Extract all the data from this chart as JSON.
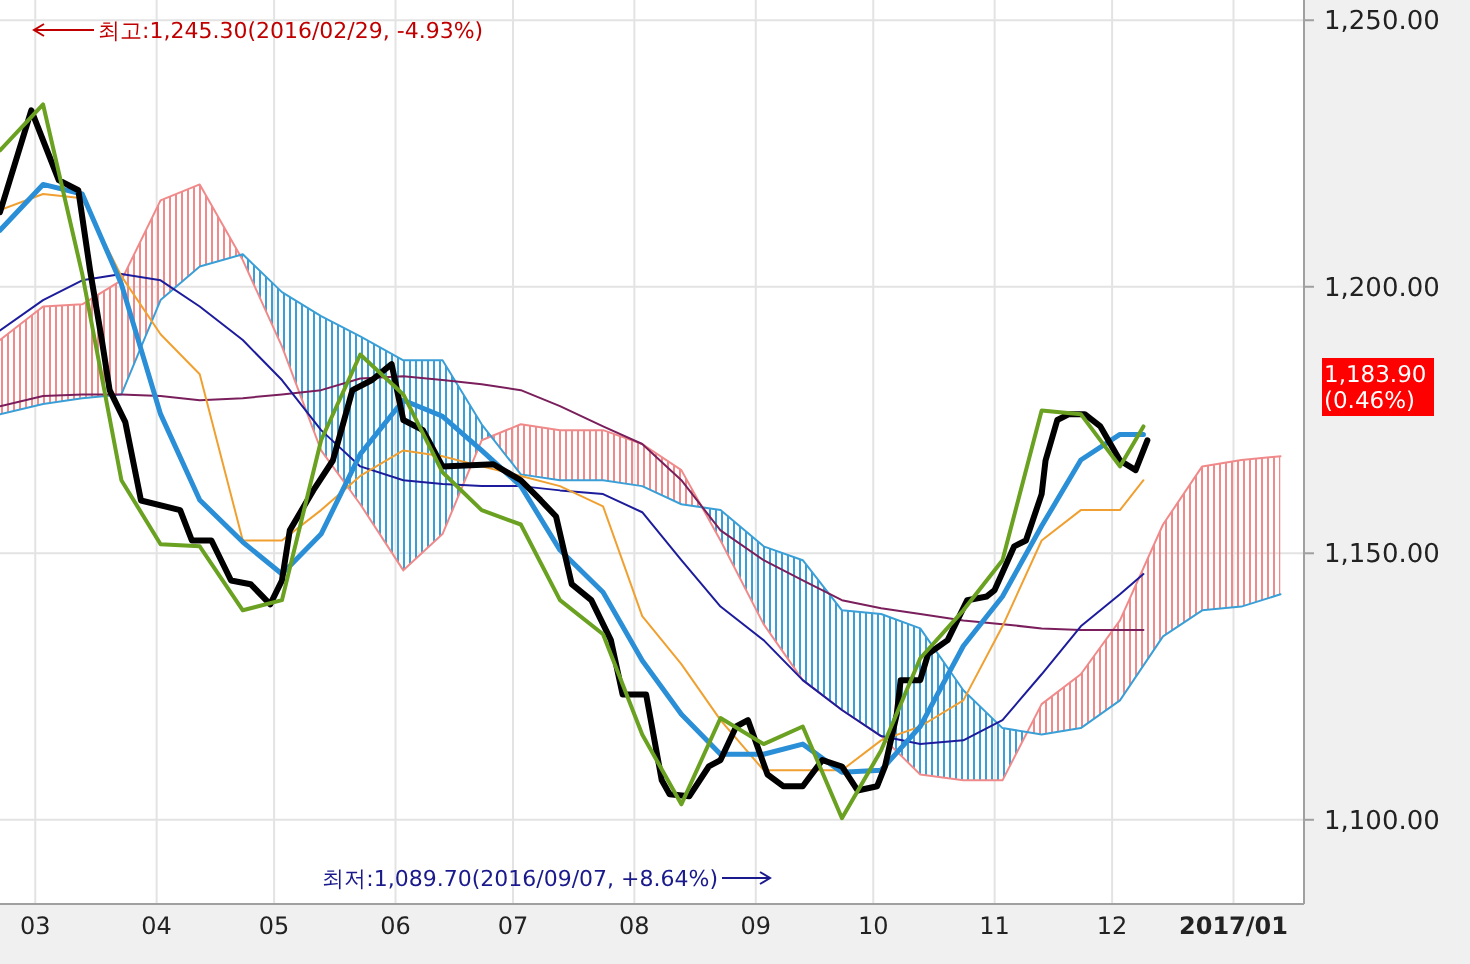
{
  "chart_data": {
    "type": "line",
    "xlim": [
      "2016-02-21",
      "2017-01-19"
    ],
    "ylim": [
      1084.2,
      1253.8
    ],
    "xticks": [
      {
        "value": "2016-03-01",
        "label": "03"
      },
      {
        "value": "2016-04-01",
        "label": "04"
      },
      {
        "value": "2016-05-01",
        "label": "05"
      },
      {
        "value": "2016-06-01",
        "label": "06"
      },
      {
        "value": "2016-07-01",
        "label": "07"
      },
      {
        "value": "2016-08-01",
        "label": "08"
      },
      {
        "value": "2016-09-01",
        "label": "09"
      },
      {
        "value": "2016-10-01",
        "label": "10"
      },
      {
        "value": "2016-11-01",
        "label": "11"
      },
      {
        "value": "2016-12-01",
        "label": "12"
      },
      {
        "value": "2017-01-01",
        "label": "**2017/01**"
      }
    ],
    "yticks": [
      {
        "value": 1100,
        "label": "1,100.00"
      },
      {
        "value": 1150,
        "label": "1,150.00"
      },
      {
        "value": 1200,
        "label": "1,200.00"
      },
      {
        "value": 1250,
        "label": "1,250.00"
      }
    ],
    "grid": true,
    "series": [
      {
        "type": "line",
        "color": "#f08a8a",
        "x": [
          "2016-02-21",
          "2016-03-03",
          "2016-03-13",
          "2016-03-23",
          "2016-04-02",
          "2016-04-12",
          "2016-04-23",
          "2016-05-03",
          "2016-05-13",
          "2016-05-23",
          "2016-06-03",
          "2016-06-13",
          "2016-06-23",
          "2016-07-03",
          "2016-07-13",
          "2016-07-24",
          "2016-08-03",
          "2016-08-13",
          "2016-08-23",
          "2016-09-03",
          "2016-09-13",
          "2016-09-23",
          "2016-10-03",
          "2016-10-13",
          "2016-10-24",
          "2016-11-03",
          "2016-11-13",
          "2016-11-23",
          "2016-12-03",
          "2016-12-14",
          "2016-12-24",
          "2017-01-03",
          "2017-01-13"
        ],
        "values": [
          1190.0,
          1196.3,
          1196.7,
          1201.2,
          1216.2,
          1219.2,
          1205.0,
          1188.8,
          1169.3,
          1159.2,
          1146.8,
          1153.6,
          1171.2,
          1174.2,
          1173.1,
          1173.1,
          1170.5,
          1165.6,
          1152.4,
          1136.7,
          1126.2,
          1120.6,
          1115.7,
          1108.5,
          1107.4,
          1107.4,
          1121.7,
          1127.3,
          1137.4,
          1155.4,
          1166.3,
          1167.5,
          1168.2
        ],
        "upper": [
          1190.0,
          1196.3,
          1196.7,
          1201.2,
          1216.2,
          1219.2,
          1205.0,
          1188.8,
          1169.3,
          1159.2,
          1146.8,
          1153.6,
          1171.2,
          1174.2,
          1173.1,
          1173.1,
          1170.5,
          1165.6,
          1152.4,
          1136.7,
          1126.2,
          1120.6,
          1115.7,
          1108.5,
          1107.4,
          1107.4,
          1121.7,
          1127.3,
          1137.4,
          1155.4,
          1166.3,
          1167.5,
          1168.2
        ],
        "lower": [
          1176.1,
          1178.0,
          1179.1,
          1179.8,
          1197.5,
          1203.8,
          1206.1,
          1199.0,
          1194.5,
          1190.7,
          1186.2,
          1186.2,
          1174.2,
          1164.8,
          1163.7,
          1163.7,
          1162.6,
          1159.2,
          1158.1,
          1151.3,
          1148.7,
          1139.3,
          1138.6,
          1135.9,
          1124.3,
          1117.2,
          1116.0,
          1117.2,
          1122.4,
          1134.4,
          1139.3,
          1140.0,
          1142.3
        ]
      },
      {
        "type": "line",
        "color": "#3a9fd6",
        "x": [
          "2016-02-21",
          "2016-03-03",
          "2016-03-13",
          "2016-03-23",
          "2016-04-02",
          "2016-04-12",
          "2016-04-23",
          "2016-05-03",
          "2016-05-13",
          "2016-05-23",
          "2016-06-03",
          "2016-06-13",
          "2016-06-23",
          "2016-07-03",
          "2016-07-13",
          "2016-07-24",
          "2016-08-03",
          "2016-08-13",
          "2016-08-23",
          "2016-09-03",
          "2016-09-13",
          "2016-09-23",
          "2016-10-03",
          "2016-10-13",
          "2016-10-24",
          "2016-11-03",
          "2016-11-13",
          "2016-11-23",
          "2016-12-03",
          "2016-12-14",
          "2016-12-24",
          "2017-01-03",
          "2017-01-13"
        ],
        "values": [
          1176.1,
          1178.0,
          1179.1,
          1179.8,
          1197.5,
          1203.8,
          1206.1,
          1199.0,
          1194.5,
          1190.7,
          1186.2,
          1186.2,
          1174.2,
          1164.8,
          1163.7,
          1163.7,
          1162.6,
          1159.2,
          1158.1,
          1151.3,
          1148.7,
          1139.3,
          1138.6,
          1135.9,
          1124.3,
          1117.2,
          1116.0,
          1117.2,
          1122.4,
          1134.4,
          1139.3,
          1140.0,
          1142.3
        ]
      },
      {
        "color": "#7a1f5c",
        "x": [
          "2016-02-21",
          "2016-03-03",
          "2016-03-13",
          "2016-03-23",
          "2016-04-02",
          "2016-04-12",
          "2016-04-23",
          "2016-05-03",
          "2016-05-13",
          "2016-05-23",
          "2016-06-03",
          "2016-06-13",
          "2016-06-23",
          "2016-07-03",
          "2016-07-13",
          "2016-07-24",
          "2016-08-03",
          "2016-08-13",
          "2016-08-23",
          "2016-09-03",
          "2016-09-13",
          "2016-09-23",
          "2016-10-03",
          "2016-10-13",
          "2016-10-24",
          "2016-11-03",
          "2016-11-13",
          "2016-11-23",
          "2016-12-03",
          "2016-12-09"
        ],
        "values": [
          1177.6,
          1179.5,
          1179.8,
          1179.8,
          1179.5,
          1178.7,
          1179.1,
          1179.8,
          1180.6,
          1182.8,
          1183.2,
          1182.5,
          1181.7,
          1180.6,
          1177.6,
          1173.8,
          1170.5,
          1163.7,
          1154.3,
          1148.7,
          1144.9,
          1141.2,
          1139.7,
          1138.6,
          1137.4,
          1136.7,
          1135.9,
          1135.6,
          1135.6,
          1135.6
        ]
      },
      {
        "color": "#1c1c9c",
        "x": [
          "2016-02-21",
          "2016-03-03",
          "2016-03-13",
          "2016-03-23",
          "2016-04-02",
          "2016-04-12",
          "2016-04-23",
          "2016-05-03",
          "2016-05-13",
          "2016-05-23",
          "2016-06-03",
          "2016-06-13",
          "2016-06-23",
          "2016-07-03",
          "2016-07-13",
          "2016-07-24",
          "2016-08-03",
          "2016-08-13",
          "2016-08-23",
          "2016-09-03",
          "2016-09-13",
          "2016-09-23",
          "2016-10-03",
          "2016-10-13",
          "2016-10-24",
          "2016-11-03",
          "2016-11-13",
          "2016-11-23",
          "2016-12-03",
          "2016-12-09"
        ],
        "values": [
          1191.8,
          1197.5,
          1201.2,
          1202.4,
          1201.2,
          1196.3,
          1190.0,
          1182.5,
          1173.1,
          1166.3,
          1163.7,
          1163.0,
          1162.6,
          1162.6,
          1161.8,
          1161.1,
          1157.7,
          1148.7,
          1140.0,
          1133.7,
          1126.2,
          1120.6,
          1115.7,
          1114.2,
          1114.9,
          1118.7,
          1127.3,
          1136.3,
          1142.3,
          1146.1
        ]
      },
      {
        "color": "#f0a030",
        "x": [
          "2016-02-21",
          "2016-03-03",
          "2016-03-13",
          "2016-03-23",
          "2016-04-02",
          "2016-04-12",
          "2016-04-23",
          "2016-05-03",
          "2016-05-13",
          "2016-05-23",
          "2016-06-03",
          "2016-06-13",
          "2016-06-23",
          "2016-07-03",
          "2016-07-13",
          "2016-07-24",
          "2016-08-03",
          "2016-08-13",
          "2016-08-23",
          "2016-09-03",
          "2016-09-13",
          "2016-09-23",
          "2016-10-03",
          "2016-10-13",
          "2016-10-24",
          "2016-11-03",
          "2016-11-13",
          "2016-11-23",
          "2016-12-03",
          "2016-12-09"
        ],
        "values": [
          1214.4,
          1217.4,
          1216.6,
          1202.0,
          1191.1,
          1183.6,
          1152.4,
          1152.4,
          1158.1,
          1164.5,
          1169.3,
          1168.2,
          1166.3,
          1164.5,
          1162.6,
          1158.8,
          1138.2,
          1129.2,
          1118.7,
          1109.3,
          1109.3,
          1109.3,
          1114.9,
          1117.5,
          1122.4,
          1136.3,
          1152.4,
          1158.1,
          1158.1,
          1163.7
        ]
      },
      {
        "color": "#2a8fd6",
        "x": [
          "2016-02-21",
          "2016-03-03",
          "2016-03-13",
          "2016-03-23",
          "2016-04-02",
          "2016-04-12",
          "2016-04-23",
          "2016-05-03",
          "2016-05-13",
          "2016-05-23",
          "2016-06-03",
          "2016-06-13",
          "2016-06-23",
          "2016-07-03",
          "2016-07-13",
          "2016-07-24",
          "2016-08-03",
          "2016-08-13",
          "2016-08-23",
          "2016-09-03",
          "2016-09-13",
          "2016-09-23",
          "2016-10-03",
          "2016-10-13",
          "2016-10-24",
          "2016-11-03",
          "2016-11-13",
          "2016-11-23",
          "2016-12-03",
          "2016-12-09"
        ],
        "values": [
          1210.6,
          1219.2,
          1217.4,
          1200.5,
          1176.1,
          1160.0,
          1152.1,
          1146.1,
          1153.6,
          1168.6,
          1178.7,
          1175.7,
          1169.3,
          1162.6,
          1150.6,
          1142.7,
          1129.9,
          1119.8,
          1112.3,
          1112.3,
          1114.2,
          1108.9,
          1109.3,
          1117.5,
          1132.6,
          1141.9,
          1155.1,
          1167.5,
          1172.3,
          1172.3
        ]
      },
      {
        "color": "#000000",
        "x": [
          "2016-02-21",
          "2016-02-29",
          "2016-03-07",
          "2016-03-12",
          "2016-03-15",
          "2016-03-18",
          "2016-03-20",
          "2016-03-24",
          "2016-03-28",
          "2016-04-07",
          "2016-04-10",
          "2016-04-15",
          "2016-04-20",
          "2016-04-25",
          "2016-04-30",
          "2016-05-03",
          "2016-05-05",
          "2016-05-11",
          "2016-05-16",
          "2016-05-21",
          "2016-05-26",
          "2016-05-31",
          "2016-06-03",
          "2016-06-08",
          "2016-06-13",
          "2016-06-26",
          "2016-07-03",
          "2016-07-08",
          "2016-07-12",
          "2016-07-16",
          "2016-07-21",
          "2016-07-26",
          "2016-07-29",
          "2016-08-04",
          "2016-08-08",
          "2016-08-10",
          "2016-08-15",
          "2016-08-20",
          "2016-08-23",
          "2016-08-27",
          "2016-08-30",
          "2016-09-04",
          "2016-09-08",
          "2016-09-13",
          "2016-09-18",
          "2016-09-23",
          "2016-09-27",
          "2016-10-02",
          "2016-10-04",
          "2016-10-07",
          "2016-10-08",
          "2016-10-13",
          "2016-10-15",
          "2016-10-20",
          "2016-10-25",
          "2016-10-30",
          "2016-11-01",
          "2016-11-06",
          "2016-11-09",
          "2016-11-13",
          "2016-11-14",
          "2016-11-17",
          "2016-11-20",
          "2016-11-24",
          "2016-11-28",
          "2016-12-03",
          "2016-12-07",
          "2016-12-10"
        ],
        "values": [
          1214.0,
          1233.1,
          1220.0,
          1218.1,
          1203.1,
          1190.0,
          1180.6,
          1174.6,
          1159.9,
          1158.1,
          1152.4,
          1152.4,
          1144.9,
          1144.2,
          1140.4,
          1144.9,
          1154.3,
          1161.8,
          1167.4,
          1180.6,
          1182.5,
          1185.5,
          1175.0,
          1173.1,
          1166.3,
          1166.7,
          1163.7,
          1160.0,
          1156.9,
          1144.2,
          1141.2,
          1133.7,
          1123.5,
          1123.5,
          1107.4,
          1104.8,
          1104.4,
          1110.0,
          1111.2,
          1117.5,
          1118.7,
          1108.5,
          1106.3,
          1106.3,
          1111.2,
          1110.0,
          1105.5,
          1106.3,
          1110.0,
          1119.8,
          1126.2,
          1126.2,
          1131.1,
          1133.7,
          1141.2,
          1141.9,
          1143.1,
          1151.3,
          1152.4,
          1161.1,
          1167.4,
          1175.0,
          1176.1,
          1176.1,
          1173.8,
          1167.4,
          1165.6,
          1171.2
        ]
      },
      {
        "color": "#6aa121",
        "x": [
          "2016-02-21",
          "2016-03-03",
          "2016-03-13",
          "2016-03-23",
          "2016-04-02",
          "2016-04-12",
          "2016-04-23",
          "2016-05-03",
          "2016-05-13",
          "2016-05-23",
          "2016-06-03",
          "2016-06-13",
          "2016-06-23",
          "2016-07-03",
          "2016-07-13",
          "2016-07-24",
          "2016-08-03",
          "2016-08-13",
          "2016-08-23",
          "2016-09-03",
          "2016-09-13",
          "2016-09-23",
          "2016-10-03",
          "2016-10-13",
          "2016-10-24",
          "2016-11-03",
          "2016-11-13",
          "2016-11-23",
          "2016-12-03",
          "2016-12-09"
        ],
        "values": [
          1225.6,
          1234.2,
          1202.4,
          1163.7,
          1151.7,
          1151.3,
          1139.3,
          1141.2,
          1171.2,
          1187.3,
          1179.8,
          1165.2,
          1158.1,
          1155.4,
          1141.2,
          1134.8,
          1116.0,
          1102.9,
          1119.1,
          1114.2,
          1117.5,
          1100.3,
          1113.0,
          1130.3,
          1139.3,
          1148.7,
          1176.8,
          1176.1,
          1166.3,
          1173.8
        ]
      }
    ],
    "annotations": [
      "최고:1,245.30(2016/02/29, -4.93%)",
      "최저:1,089.70(2016/09/07, +8.64%)",
      "1,183.90 (0.46%)"
    ]
  }
}
